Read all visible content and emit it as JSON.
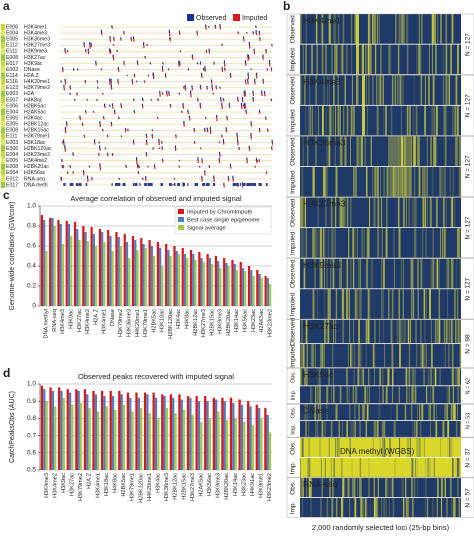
{
  "chart_data": [
    {
      "type": "bar",
      "label": "c",
      "title": "Average correlation of observed and imputed signal",
      "ylabel": "Genome-wide correlation (GWcorr)",
      "categories": [
        "DNA methyl",
        "RNA-seq",
        "H3K4me3",
        "H3K9ac",
        "H3K27ac",
        "H3K4me2",
        "H2A.Z",
        "H3K4me1",
        "DNase",
        "H3K79me2",
        "H3K36me3",
        "H4K20me1",
        "H3K79me1",
        "H2BK5ac",
        "H3K18ac",
        "H2BK120ac",
        "H3K4ac",
        "H4K8ac",
        "H2BK12ac",
        "H3K27me3",
        "H2BK15ac",
        "H3K9me3",
        "H2BK20ac",
        "H3K14ac",
        "H3K56ac",
        "H3K23ac",
        "H2AK5ac",
        "H3K23me2"
      ],
      "series": [
        {
          "name": "Imputed by ChromImpute",
          "color": "#d7191c",
          "values": [
            0.91,
            0.88,
            0.86,
            0.85,
            0.84,
            0.8,
            0.79,
            0.77,
            0.76,
            0.74,
            0.72,
            0.7,
            0.68,
            0.66,
            0.64,
            0.62,
            0.6,
            0.58,
            0.56,
            0.54,
            0.52,
            0.5,
            0.48,
            0.46,
            0.44,
            0.4,
            0.36,
            0.3
          ]
        },
        {
          "name": "Best case single epigenome",
          "color": "#4f7fbf",
          "values": [
            0.86,
            0.88,
            0.82,
            0.82,
            0.77,
            0.74,
            0.72,
            0.74,
            0.7,
            0.69,
            0.64,
            0.66,
            0.62,
            0.6,
            0.58,
            0.56,
            0.55,
            0.52,
            0.52,
            0.48,
            0.48,
            0.45,
            0.43,
            0.42,
            0.38,
            0.36,
            0.32,
            0.28
          ]
        },
        {
          "name": "Signal average",
          "color": "#a8c84a",
          "values": [
            0.55,
            0.8,
            0.62,
            0.7,
            0.66,
            0.65,
            0.6,
            0.64,
            0.55,
            0.6,
            0.48,
            0.56,
            0.58,
            0.5,
            0.4,
            0.5,
            0.52,
            0.48,
            0.46,
            0.44,
            0.42,
            0.38,
            0.4,
            0.36,
            0.35,
            0.3,
            0.28,
            0.22
          ]
        }
      ],
      "ylim": [
        0,
        1
      ],
      "yticks": [
        0,
        0.2,
        0.4,
        0.6,
        0.8,
        {
          "value": 1,
          "label": "1.0"
        }
      ],
      "grid": true,
      "legend": "upper right"
    },
    {
      "type": "bar",
      "label": "d",
      "title": "Observed peaks recovered with imputed signal",
      "ylabel": "CatchPeaksObs (AUC)",
      "categories": [
        "H3K4me3",
        "H3K4me2",
        "H3K9ac",
        "H3K27ac",
        "H3K79me2",
        "H2A.Z",
        "H3K4me1",
        "H3K18ac",
        "H4K8ac",
        "H2BK5ac",
        "H3K79me1",
        "H2BK120ac",
        "H4K20me1",
        "H3K4ac",
        "H3K36me3",
        "H2BK12ac",
        "H2BK15ac",
        "H3K27me3",
        "H2AK5ac",
        "H3K56ac",
        "H3K9me3",
        "H2BK20ac",
        "H3K14ac",
        "H3K23ac",
        "H4K91ac",
        "H3K9me1",
        "H3K23me2"
      ],
      "series": [
        {
          "color": "#d7191c",
          "values": [
            0.99,
            0.98,
            0.98,
            0.97,
            0.97,
            0.97,
            0.96,
            0.96,
            0.96,
            0.96,
            0.95,
            0.95,
            0.95,
            0.95,
            0.94,
            0.94,
            0.94,
            0.93,
            0.93,
            0.93,
            0.92,
            0.92,
            0.92,
            0.91,
            0.9,
            0.88,
            0.86
          ]
        },
        {
          "color": "#4f7fbf",
          "values": [
            0.97,
            0.96,
            0.96,
            0.95,
            0.96,
            0.94,
            0.94,
            0.93,
            0.93,
            0.94,
            0.92,
            0.92,
            0.94,
            0.92,
            0.93,
            0.92,
            0.91,
            0.92,
            0.9,
            0.9,
            0.91,
            0.9,
            0.89,
            0.88,
            0.87,
            0.86,
            0.82
          ]
        },
        {
          "color": "#a8c84a",
          "values": [
            0.9,
            0.87,
            0.92,
            0.88,
            0.89,
            0.86,
            0.84,
            0.87,
            0.85,
            0.88,
            0.84,
            0.86,
            0.83,
            0.8,
            0.86,
            0.83,
            0.85,
            0.82,
            0.78,
            0.8,
            0.84,
            0.79,
            0.8,
            0.78,
            0.76,
            0.8,
            0.72
          ]
        }
      ],
      "ylim": [
        0.5,
        1
      ],
      "yticks": [
        0.5,
        0.6,
        0.7,
        0.8,
        0.9,
        {
          "value": 1,
          "label": "1.0"
        }
      ],
      "grid": true
    }
  ],
  "panel_a": {
    "label": "a",
    "legend": [
      "Observed",
      "Imputed"
    ],
    "rows": [
      {
        "epigenome": "E006",
        "mark": "H3K4me1"
      },
      {
        "epigenome": "E004",
        "mark": "H3K4me3"
      },
      {
        "epigenome": "E005",
        "mark": "H3K36me3"
      },
      {
        "epigenome": "E112",
        "mark": "H3K27me3"
      },
      {
        "epigenome": "E111",
        "mark": "H3K9me3"
      },
      {
        "epigenome": "E008",
        "mark": "H3K27ac"
      },
      {
        "epigenome": "E017",
        "mark": "H3K9ac"
      },
      {
        "epigenome": "E003",
        "mark": "DNase"
      },
      {
        "epigenome": "E114",
        "mark": "H2A.Z"
      },
      {
        "epigenome": "E116",
        "mark": "H4K20me1"
      },
      {
        "epigenome": "E123",
        "mark": "H3K79me2"
      },
      {
        "epigenome": "E003",
        "mark": "H2A"
      },
      {
        "epigenome": "E007",
        "mark": "H4K8ac"
      },
      {
        "epigenome": "E006",
        "mark": "H2BK5ac"
      },
      {
        "epigenome": "E004",
        "mark": "H2AK5ac"
      },
      {
        "epigenome": "E005",
        "mark": "H3K4ac"
      },
      {
        "epigenome": "E005",
        "mark": "H2BK12ac"
      },
      {
        "epigenome": "E008",
        "mark": "H2BK15ac"
      },
      {
        "epigenome": "E111",
        "mark": "H3K79me1"
      },
      {
        "epigenome": "E003",
        "mark": "H3K18ac"
      },
      {
        "epigenome": "E006",
        "mark": "H2BK120ac"
      },
      {
        "epigenome": "E004",
        "mark": "H3K23me2"
      },
      {
        "epigenome": "E005",
        "mark": "H3K4me2"
      },
      {
        "epigenome": "E008",
        "mark": "H2BK20ac"
      },
      {
        "epigenome": "E004",
        "mark": "H3K56ac"
      },
      {
        "epigenome": "E012",
        "mark": "RNA-seq"
      },
      {
        "epigenome": "E017",
        "mark": "DNA meth"
      }
    ]
  },
  "panel_b": {
    "label": "b",
    "xlabel": "2,000 randomly selected loci (25-bp bins)",
    "blocks": [
      {
        "mark": "H3K4me1",
        "n": "N = 127",
        "observed": "Observed",
        "imputed": "Imputed"
      },
      {
        "mark": "H3K4me3",
        "n": "N = 127",
        "observed": "Observed",
        "imputed": "Imputed"
      },
      {
        "mark": "H3K36me3",
        "n": "N = 127",
        "observed": "Observed",
        "imputed": "Imputed"
      },
      {
        "mark": "H3K27me3",
        "n": "N = 127",
        "observed": "Observed",
        "imputed": "Imputed"
      },
      {
        "mark": "H3K9me3",
        "n": "N = 127",
        "observed": "Observed",
        "imputed": "Imputed"
      },
      {
        "mark": "H3K27ac",
        "n": "N = 98",
        "observed": "Observed",
        "imputed": "Imputed"
      },
      {
        "mark": "H3K9ac",
        "n": "N = 62",
        "observed": "Obs.",
        "imputed": "Imp."
      },
      {
        "mark": "DNase",
        "n": "N = 53",
        "observed": "Obs.",
        "imputed": "Imp."
      },
      {
        "mark": "DNA methyl (WGBS)",
        "n": "N = 37",
        "observed": "Obs.",
        "imputed": "Imp."
      },
      {
        "mark": "RNA-seq",
        "n": "N = 57",
        "observed": "Obs.",
        "imputed": "Imp."
      }
    ]
  }
}
